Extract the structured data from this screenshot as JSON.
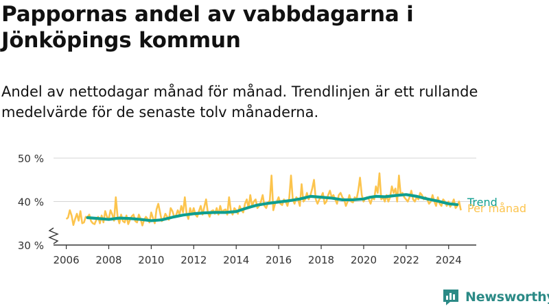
{
  "title": "Pappornas andel av vabbdagarna i Jönköpings kommun",
  "subtitle": "Andel av nettodagar månad för månad. Trendlinjen är ett rullande medelvärde för de senaste tolv månaderna.",
  "brand": {
    "name": "Newsworthy",
    "icon": "bar-chart-logo-icon",
    "color": "#2b8a86"
  },
  "colors": {
    "monthly": "#fcc44d",
    "trend": "#0e9e8f",
    "grid": "#d4d4d4",
    "axis": "#333333"
  },
  "chart_data": {
    "type": "line",
    "x_unit": "year",
    "y_unit": "percent",
    "xlim": [
      2005.4,
      2025.3
    ],
    "ylim": [
      30,
      50
    ],
    "y_axis_break": true,
    "grid": "horizontal",
    "x_ticks": [
      2006,
      2008,
      2010,
      2012,
      2014,
      2016,
      2018,
      2020,
      2022,
      2024
    ],
    "x_tick_labels": [
      "2006",
      "2008",
      "2010",
      "2012",
      "2014",
      "2016",
      "2018",
      "2020",
      "2022",
      "2024"
    ],
    "y_ticks": [
      30,
      40,
      50
    ],
    "y_tick_labels": [
      "30 %",
      "40 %",
      "50 %"
    ],
    "legend": "direct labels at right end of lines",
    "series": [
      {
        "name": "Per månad",
        "color": "#fcc44d",
        "start": 2006.0,
        "step": 0.0833,
        "values": [
          36.0,
          36.3,
          38.0,
          36.8,
          34.6,
          36.0,
          37.2,
          35.6,
          37.8,
          35.0,
          35.2,
          36.5,
          36.4,
          37.0,
          35.5,
          35.0,
          34.8,
          35.8,
          36.5,
          35.0,
          36.8,
          35.2,
          37.8,
          36.5,
          36.0,
          38.0,
          37.0,
          35.6,
          41.0,
          36.5,
          35.0,
          37.0,
          35.5,
          35.2,
          36.8,
          34.8,
          35.8,
          36.6,
          37.0,
          35.5,
          35.2,
          37.0,
          36.0,
          34.5,
          35.8,
          36.5,
          36.0,
          35.2,
          37.5,
          36.2,
          35.0,
          38.2,
          39.5,
          37.5,
          35.5,
          36.0,
          37.2,
          36.5,
          35.8,
          38.5,
          37.8,
          36.5,
          36.8,
          38.0,
          37.0,
          39.0,
          37.5,
          41.0,
          37.2,
          36.0,
          38.5,
          37.0,
          38.5,
          37.0,
          36.5,
          37.8,
          39.0,
          37.0,
          38.8,
          40.5,
          37.5,
          36.5,
          37.8,
          38.0,
          37.2,
          38.5,
          37.0,
          39.0,
          37.5,
          38.0,
          38.2,
          37.0,
          41.0,
          38.0,
          37.0,
          38.5,
          38.0,
          37.2,
          39.0,
          38.0,
          37.5,
          39.5,
          40.5,
          38.5,
          41.5,
          39.0,
          40.0,
          40.5,
          38.5,
          39.0,
          40.0,
          41.5,
          39.0,
          38.5,
          39.8,
          40.2,
          46.0,
          38.0,
          39.5,
          40.0,
          41.0,
          39.5,
          39.2,
          40.5,
          40.0,
          39.0,
          40.8,
          46.0,
          40.5,
          39.5,
          41.0,
          40.5,
          39.0,
          44.0,
          40.0,
          40.5,
          42.0,
          40.5,
          41.5,
          43.0,
          45.0,
          40.5,
          39.5,
          40.5,
          41.0,
          42.0,
          39.5,
          40.0,
          41.5,
          42.5,
          41.0,
          41.5,
          40.5,
          39.5,
          41.5,
          42.0,
          41.0,
          40.5,
          39.0,
          40.0,
          41.5,
          40.0,
          39.8,
          41.0,
          40.5,
          42.5,
          45.5,
          41.5,
          40.0,
          40.8,
          41.0,
          40.5,
          39.5,
          41.0,
          40.5,
          43.5,
          42.0,
          46.5,
          40.5,
          41.0,
          40.0,
          41.5,
          40.0,
          41.0,
          43.5,
          42.0,
          43.0,
          40.0,
          46.0,
          41.5,
          42.0,
          41.0,
          40.5,
          40.0,
          41.0,
          42.5,
          40.5,
          40.0,
          41.0,
          40.5,
          42.0,
          41.5,
          40.5,
          41.0,
          40.5,
          39.5,
          40.0,
          41.5,
          40.0,
          39.0,
          41.0,
          39.5,
          39.0,
          40.5,
          40.0,
          39.0,
          40.0,
          38.8,
          39.5,
          40.5,
          38.5,
          39.0,
          40.0,
          38.0
        ]
      },
      {
        "name": "Trend",
        "color": "#0e9e8f",
        "points": [
          [
            2007.0,
            36.3
          ],
          [
            2007.5,
            36.1
          ],
          [
            2008.0,
            35.9
          ],
          [
            2008.5,
            36.2
          ],
          [
            2009.0,
            36.1
          ],
          [
            2009.5,
            35.9
          ],
          [
            2010.0,
            35.6
          ],
          [
            2010.5,
            35.8
          ],
          [
            2011.0,
            36.4
          ],
          [
            2011.5,
            36.9
          ],
          [
            2012.0,
            37.2
          ],
          [
            2012.5,
            37.4
          ],
          [
            2013.0,
            37.5
          ],
          [
            2013.5,
            37.5
          ],
          [
            2014.0,
            37.7
          ],
          [
            2014.3,
            38.2
          ],
          [
            2014.7,
            38.8
          ],
          [
            2015.0,
            39.2
          ],
          [
            2015.5,
            39.6
          ],
          [
            2016.0,
            39.9
          ],
          [
            2016.5,
            40.2
          ],
          [
            2017.0,
            40.6
          ],
          [
            2017.5,
            41.2
          ],
          [
            2018.0,
            41.0
          ],
          [
            2018.5,
            40.8
          ],
          [
            2019.0,
            40.4
          ],
          [
            2019.5,
            40.4
          ],
          [
            2020.0,
            40.6
          ],
          [
            2020.3,
            41.0
          ],
          [
            2020.6,
            41.2
          ],
          [
            2021.0,
            41.1
          ],
          [
            2021.5,
            41.4
          ],
          [
            2022.0,
            41.6
          ],
          [
            2022.5,
            41.2
          ],
          [
            2023.0,
            40.6
          ],
          [
            2023.5,
            40.1
          ],
          [
            2024.0,
            39.5
          ],
          [
            2024.4,
            39.3
          ]
        ]
      }
    ]
  }
}
